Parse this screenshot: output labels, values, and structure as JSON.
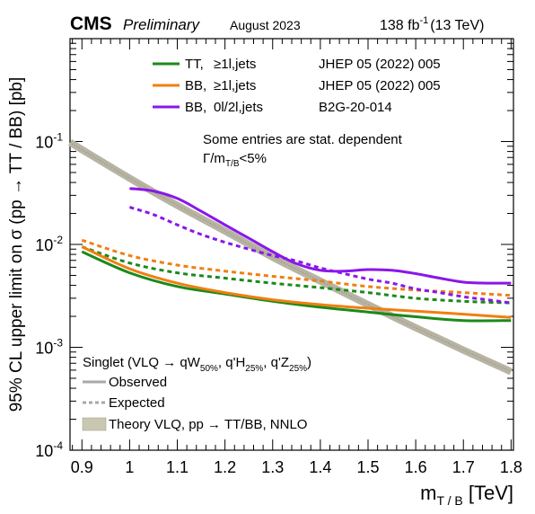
{
  "header": {
    "experiment": "CMS",
    "status": "Preliminary",
    "date": "August 2023",
    "lumi_value": "138 fb",
    "lumi_exp": "-1",
    "lumi_energy": "(13 TeV)"
  },
  "legend_top": [
    {
      "process": "TT,",
      "channel": "≥1l,jets",
      "ref": "JHEP 05 (2022) 005",
      "color": "#1a8a1a"
    },
    {
      "process": "BB,",
      "channel": "≥1l,jets",
      "ref": "JHEP 05 (2022) 005",
      "color": "#f07f12"
    },
    {
      "process": "BB,",
      "channel": "0l/2l,jets",
      "ref": "B2G-20-014",
      "color": "#8a17e8"
    }
  ],
  "notes": {
    "line1": "Some entries are stat. dependent",
    "gamma_main": "Γ/m",
    "gamma_sub": "T/B",
    "gamma_tail": "<5%"
  },
  "legend_bottom": {
    "title_main": "Singlet (VLQ → qW",
    "title_w_sub": "50%",
    "title_h": ", q'H",
    "title_h_sub": "25%",
    "title_z": ", q'Z",
    "title_z_sub": "25%",
    "title_end": ")",
    "observed": "Observed",
    "expected": "Expected",
    "theory": "Theory VLQ, pp → TT/BB, NNLO"
  },
  "axes": {
    "ylabel": "95% CL upper limit on σ (pp → TT / BB) [pb]",
    "xlabel_main": "m",
    "xlabel_sub": "T / B",
    "xlabel_unit": " [TeV]"
  },
  "chart_data": {
    "type": "line",
    "x_range": [
      0.875,
      1.805
    ],
    "y_range": [
      0.0001,
      1.0
    ],
    "y_scale": "log",
    "x_ticks": [
      "0.9",
      "1",
      "1.1",
      "1.2",
      "1.3",
      "1.4",
      "1.5",
      "1.6",
      "1.7",
      "1.8"
    ],
    "y_ticks": [
      {
        "base": "10",
        "exp": "-4",
        "value": 0.0001
      },
      {
        "base": "10",
        "exp": "-3",
        "value": 0.001
      },
      {
        "base": "10",
        "exp": "-2",
        "value": 0.01
      },
      {
        "base": "10",
        "exp": "-1",
        "value": 0.1
      }
    ],
    "series": [
      {
        "name": "Theory VLQ, pp → TT/BB, NNLO",
        "kind": "theory",
        "color": "#b8b4a4",
        "x": [
          0.875,
          1.0,
          1.1,
          1.2,
          1.3,
          1.4,
          1.5,
          1.6,
          1.7,
          1.8
        ],
        "y": [
          0.098,
          0.044,
          0.024,
          0.0135,
          0.0075,
          0.0044,
          0.0026,
          0.00155,
          0.00094,
          0.00058
        ]
      },
      {
        "name": "TT, ≥1l,jets",
        "kind": "observed",
        "color": "#1a8a1a",
        "x": [
          0.9,
          1.0,
          1.1,
          1.2,
          1.3,
          1.4,
          1.5,
          1.6,
          1.7,
          1.8
        ],
        "y": [
          0.0085,
          0.0053,
          0.0039,
          0.0033,
          0.0028,
          0.00245,
          0.0022,
          0.00198,
          0.00182,
          0.00182
        ]
      },
      {
        "name": "TT, ≥1l,jets",
        "kind": "expected",
        "color": "#1a8a1a",
        "x": [
          0.9,
          1.0,
          1.1,
          1.2,
          1.3,
          1.4,
          1.5,
          1.6,
          1.7,
          1.8
        ],
        "y": [
          0.0095,
          0.0066,
          0.0053,
          0.0047,
          0.0042,
          0.0038,
          0.0034,
          0.003,
          0.0028,
          0.0027
        ]
      },
      {
        "name": "BB, ≥1l,jets",
        "kind": "observed",
        "color": "#f07f12",
        "x": [
          0.9,
          1.0,
          1.1,
          1.2,
          1.3,
          1.4,
          1.5,
          1.6,
          1.7,
          1.8
        ],
        "y": [
          0.0095,
          0.0058,
          0.0042,
          0.0034,
          0.0029,
          0.0026,
          0.0024,
          0.00225,
          0.0021,
          0.00195
        ]
      },
      {
        "name": "BB, ≥1l,jets",
        "kind": "expected",
        "color": "#f07f12",
        "x": [
          0.9,
          1.0,
          1.1,
          1.2,
          1.3,
          1.4,
          1.5,
          1.6,
          1.7,
          1.8
        ],
        "y": [
          0.011,
          0.0078,
          0.0063,
          0.0055,
          0.0049,
          0.0044,
          0.0039,
          0.0036,
          0.0034,
          0.0032
        ]
      },
      {
        "name": "BB, 0l/2l,jets",
        "kind": "observed",
        "color": "#8a17e8",
        "x": [
          1.0,
          1.05,
          1.1,
          1.15,
          1.2,
          1.25,
          1.3,
          1.35,
          1.4,
          1.45,
          1.5,
          1.55,
          1.6,
          1.65,
          1.7,
          1.75,
          1.8
        ],
        "y": [
          0.035,
          0.033,
          0.028,
          0.021,
          0.0155,
          0.0115,
          0.0085,
          0.0065,
          0.0056,
          0.0055,
          0.0057,
          0.0056,
          0.0052,
          0.0047,
          0.0043,
          0.0042,
          0.0042
        ]
      },
      {
        "name": "BB, 0l/2l,jets",
        "kind": "expected",
        "color": "#8a17e8",
        "x": [
          1.0,
          1.05,
          1.1,
          1.15,
          1.2,
          1.25,
          1.3,
          1.35,
          1.4,
          1.45,
          1.5,
          1.55,
          1.6,
          1.65,
          1.7,
          1.75,
          1.8
        ],
        "y": [
          0.023,
          0.0195,
          0.0155,
          0.0125,
          0.0105,
          0.009,
          0.0078,
          0.0069,
          0.0059,
          0.0052,
          0.0046,
          0.0042,
          0.0037,
          0.0034,
          0.0031,
          0.0029,
          0.0027
        ]
      }
    ]
  }
}
